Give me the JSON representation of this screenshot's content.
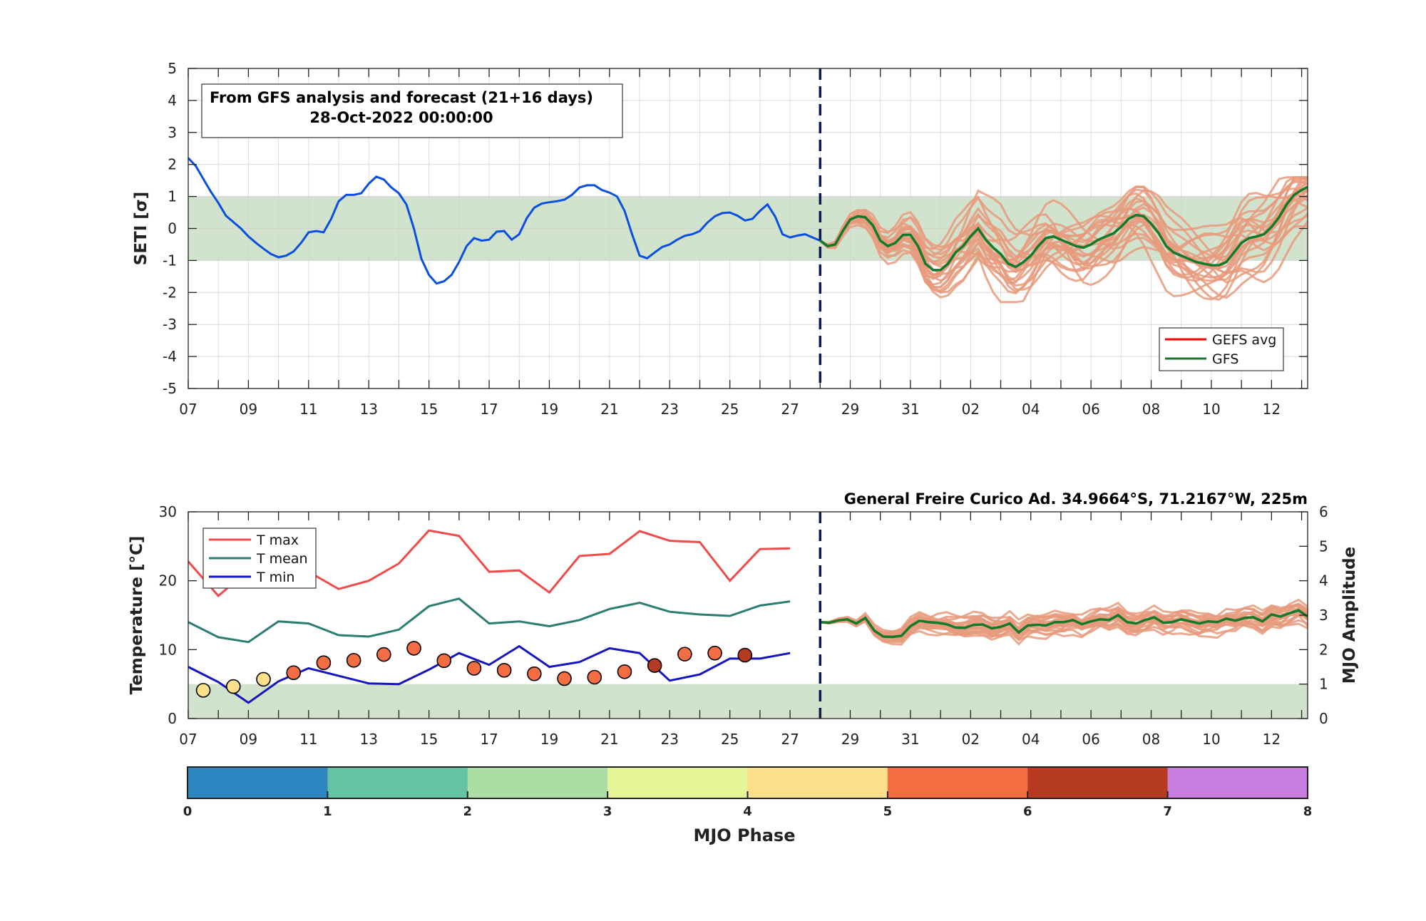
{
  "chart_data": [
    {
      "type": "line",
      "panel": "seti",
      "ylabel": "SETI [σ]",
      "ylim": [
        -5,
        5
      ],
      "yticks": [
        "5",
        "4",
        "3",
        "2",
        "1",
        "0",
        "-1",
        "-2",
        "-3",
        "-4",
        "-5"
      ],
      "xticks": [
        "07",
        "09",
        "11",
        "13",
        "15",
        "17",
        "19",
        "21",
        "23",
        "25",
        "27",
        "29",
        "31",
        "02",
        "04",
        "06",
        "08",
        "10",
        "12"
      ],
      "xrange_days": [
        0,
        37.2
      ],
      "band": [
        -1,
        1
      ],
      "forecast_start_day": 21,
      "grid": true,
      "legend_position": "bottom-right",
      "info_box": {
        "line1": "From GFS analysis and forecast (21+16 days)",
        "line2": "28-Oct-2022 00:00:00"
      },
      "legend": [
        {
          "label": "GEFS avg",
          "color": "#ff0000"
        },
        {
          "label": "GFS",
          "color": "#127a2a"
        }
      ],
      "colors": {
        "analysis": "#0a4fe0",
        "gefs_member": "#e89a7d",
        "gfs": "#127a2a",
        "band": "#d1e2cd",
        "divider": "#0d1a52"
      },
      "analysis": {
        "x": [
          0,
          0.25,
          0.5,
          0.75,
          1,
          1.25,
          1.5,
          1.75,
          2,
          2.25,
          2.5,
          2.75,
          3,
          3.25,
          3.5,
          3.75,
          4,
          4.25,
          4.5,
          4.75,
          5,
          5.25,
          5.5,
          5.75,
          6,
          6.25,
          6.5,
          6.75,
          7,
          7.25,
          7.5,
          7.75,
          8,
          8.25,
          8.5,
          8.75,
          9,
          9.25,
          9.5,
          9.75,
          10,
          10.25,
          10.5,
          10.75,
          11,
          11.25,
          11.5,
          11.75,
          12,
          12.25,
          12.5,
          12.75,
          13,
          13.25,
          13.5,
          13.75,
          14,
          14.25,
          14.5,
          14.75,
          15,
          15.25,
          15.5,
          15.75,
          16,
          16.25,
          16.5,
          16.75,
          17,
          17.25,
          17.5,
          17.75,
          18,
          18.25,
          18.5,
          18.75,
          19,
          19.25,
          19.5,
          19.75,
          20,
          20.25,
          20.5,
          20.75,
          21
        ],
        "y": [
          2.2,
          1.95,
          1.55,
          1.15,
          0.8,
          0.4,
          0.2,
          0,
          -0.25,
          -0.45,
          -0.63,
          -0.8,
          -0.9,
          -0.85,
          -0.72,
          -0.45,
          -0.12,
          -0.08,
          -0.12,
          0.3,
          0.85,
          1.05,
          1.05,
          1.1,
          1.4,
          1.62,
          1.53,
          1.28,
          1.1,
          0.75,
          0.0,
          -0.95,
          -1.45,
          -1.72,
          -1.65,
          -1.45,
          -1.05,
          -0.55,
          -0.3,
          -0.38,
          -0.35,
          -0.1,
          -0.08,
          -0.35,
          -0.18,
          0.32,
          0.65,
          0.78,
          0.82,
          0.85,
          0.9,
          1.05,
          1.28,
          1.35,
          1.35,
          1.2,
          1.12,
          1.0,
          0.55,
          -0.18,
          -0.85,
          -0.93,
          -0.75,
          -0.58,
          -0.5,
          -0.35,
          -0.23,
          -0.18,
          -0.08,
          0.18,
          0.38,
          0.48,
          0.5,
          0.4,
          0.25,
          0.3,
          0.55,
          0.75,
          0.38,
          -0.18,
          -0.28,
          -0.22,
          -0.18,
          -0.28,
          -0.38
        ]
      },
      "gfs": {
        "x": [
          21,
          21.25,
          21.5,
          21.75,
          22,
          22.25,
          22.5,
          22.75,
          23,
          23.25,
          23.5,
          23.75,
          24,
          24.25,
          24.5,
          24.75,
          25,
          25.25,
          25.5,
          25.75,
          26,
          26.25,
          26.5,
          26.75,
          27,
          27.25,
          27.5,
          27.75,
          28,
          28.25,
          28.5,
          28.75,
          29,
          29.25,
          29.5,
          29.75,
          30,
          30.25,
          30.5,
          30.75,
          31,
          31.25,
          31.5,
          31.75,
          32,
          32.25,
          32.5,
          32.75,
          33,
          33.25,
          33.5,
          33.75,
          34,
          34.25,
          34.5,
          34.75,
          35,
          35.25,
          35.5,
          35.75,
          36,
          36.25,
          36.5,
          36.75,
          37,
          37.2
        ],
        "y": [
          -0.38,
          -0.55,
          -0.5,
          -0.08,
          0.28,
          0.38,
          0.35,
          0.1,
          -0.38,
          -0.55,
          -0.45,
          -0.2,
          -0.2,
          -0.55,
          -1.1,
          -1.3,
          -1.3,
          -1.1,
          -0.75,
          -0.55,
          -0.25,
          0.0,
          -0.35,
          -0.6,
          -0.8,
          -1.1,
          -1.2,
          -1.05,
          -0.85,
          -0.55,
          -0.3,
          -0.25,
          -0.35,
          -0.45,
          -0.55,
          -0.6,
          -0.5,
          -0.35,
          -0.25,
          -0.15,
          0.05,
          0.3,
          0.42,
          0.38,
          0.15,
          -0.15,
          -0.55,
          -0.75,
          -0.85,
          -0.95,
          -1.05,
          -1.1,
          -1.15,
          -1.15,
          -1.05,
          -0.75,
          -0.45,
          -0.3,
          -0.25,
          -0.18,
          0.05,
          0.35,
          0.75,
          1.05,
          1.2,
          1.3
        ]
      }
    },
    {
      "type": "line",
      "panel": "temperature",
      "title": "General Freire Curico Ad. 34.9664°S, 71.2167°W, 225m",
      "ylabel": "Temperature [°C]",
      "y2label": "MJO Amplitude",
      "ylim": [
        0,
        30
      ],
      "y2lim": [
        0,
        6
      ],
      "yticks": [
        "0",
        "10",
        "20",
        "30"
      ],
      "y2ticks": [
        "0",
        "1",
        "2",
        "3",
        "4",
        "5",
        "6"
      ],
      "xticks": [
        "07",
        "09",
        "11",
        "13",
        "15",
        "17",
        "19",
        "21",
        "23",
        "25",
        "27",
        "29",
        "31",
        "02",
        "04",
        "06",
        "08",
        "10",
        "12"
      ],
      "band": [
        0,
        5
      ],
      "forecast_start_day": 21,
      "legend_position": "top-left",
      "series": [
        {
          "name": "T max",
          "color": "#f04a4a",
          "x": [
            0,
            1,
            2,
            3,
            4,
            5,
            6,
            7,
            8,
            9,
            10,
            11,
            12,
            13,
            14,
            15,
            16,
            17,
            18,
            19,
            20
          ],
          "y": [
            22.8,
            17.8,
            21.5,
            22.5,
            21.3,
            18.8,
            20.0,
            22.5,
            27.3,
            26.5,
            21.3,
            21.5,
            18.3,
            23.6,
            23.9,
            27.2,
            25.8,
            25.6,
            20.0,
            24.6,
            24.7
          ]
        },
        {
          "name": "T mean",
          "color": "#2b7c73",
          "x": [
            0,
            1,
            2,
            3,
            4,
            5,
            6,
            7,
            8,
            9,
            10,
            11,
            12,
            13,
            14,
            15,
            16,
            17,
            18,
            19,
            20
          ],
          "y": [
            14.0,
            11.8,
            11.1,
            14.1,
            13.8,
            12.1,
            11.9,
            12.9,
            16.3,
            17.4,
            13.8,
            14.1,
            13.4,
            14.3,
            15.9,
            16.8,
            15.5,
            15.1,
            14.9,
            16.4,
            17.0
          ]
        },
        {
          "name": "T min",
          "color": "#1414c0",
          "x": [
            0,
            1,
            2,
            3,
            4,
            5,
            6,
            7,
            8,
            9,
            10,
            11,
            12,
            13,
            14,
            15,
            16,
            17,
            18,
            19,
            20
          ],
          "y": [
            7.5,
            5.3,
            2.3,
            5.4,
            7.3,
            6.2,
            5.1,
            5.0,
            7.1,
            9.5,
            7.8,
            10.5,
            7.5,
            8.2,
            10.2,
            9.5,
            5.5,
            6.4,
            8.7,
            8.7,
            9.5
          ]
        }
      ],
      "mjo_points": {
        "x": [
          0.5,
          1.5,
          2.5,
          3.5,
          4.5,
          5.5,
          6.5,
          7.5,
          8.5,
          9.5,
          10.5,
          11.5,
          12.5,
          13.5,
          14.5,
          15.5,
          16.5,
          17.5,
          18.5
        ],
        "amplitude": [
          0.82,
          0.93,
          1.14,
          1.33,
          1.62,
          1.69,
          1.86,
          2.04,
          1.68,
          1.46,
          1.4,
          1.3,
          1.16,
          1.2,
          1.36,
          1.54,
          1.87,
          1.9,
          1.84
        ],
        "phase": [
          4.5,
          4.5,
          4.5,
          5.5,
          5.5,
          5.5,
          5.5,
          5.5,
          5.5,
          5.5,
          5.5,
          5.5,
          5.5,
          5.5,
          5.5,
          6.5,
          5.5,
          5.5,
          6.5
        ]
      },
      "mjo_forecast_gfs": {
        "x": [
          21,
          21.3,
          21.6,
          21.9,
          22.2,
          22.5,
          22.8,
          23.1,
          23.4,
          23.7,
          24,
          24.3,
          24.6,
          24.9,
          25.2,
          25.5,
          25.8,
          26.1,
          26.4,
          26.7,
          27,
          27.3,
          27.6,
          27.9,
          28.2,
          28.5,
          28.8,
          29.1,
          29.4,
          29.7,
          30,
          30.3,
          30.6,
          30.9,
          31.2,
          31.5,
          31.8,
          32.1,
          32.4,
          32.7,
          33,
          33.3,
          33.6,
          33.9,
          34.2,
          34.5,
          34.8,
          35.1,
          35.4,
          35.7,
          36,
          36.3,
          36.6,
          36.9,
          37.2
        ],
        "amplitude": [
          2.8,
          2.78,
          2.85,
          2.88,
          2.76,
          2.92,
          2.55,
          2.38,
          2.37,
          2.4,
          2.68,
          2.84,
          2.8,
          2.78,
          2.74,
          2.64,
          2.63,
          2.72,
          2.73,
          2.62,
          2.66,
          2.76,
          2.5,
          2.7,
          2.72,
          2.7,
          2.8,
          2.8,
          2.86,
          2.74,
          2.82,
          2.88,
          2.86,
          3.0,
          2.8,
          2.76,
          2.86,
          2.94,
          2.78,
          2.8,
          2.88,
          2.82,
          2.76,
          2.82,
          2.8,
          2.9,
          2.84,
          2.92,
          2.94,
          2.82,
          3.02,
          2.96,
          3.06,
          3.14,
          2.96
        ]
      }
    },
    {
      "type": "colorbar",
      "xlabel": "MJO Phase",
      "ticks": [
        "0",
        "1",
        "2",
        "3",
        "4",
        "5",
        "6",
        "7",
        "8"
      ],
      "colors": [
        "#2e86c1",
        "#66c2a5",
        "#abdda4",
        "#e6f598",
        "#fee08b",
        "#f46d43",
        "#b73b22",
        "#c97ddf"
      ]
    }
  ]
}
